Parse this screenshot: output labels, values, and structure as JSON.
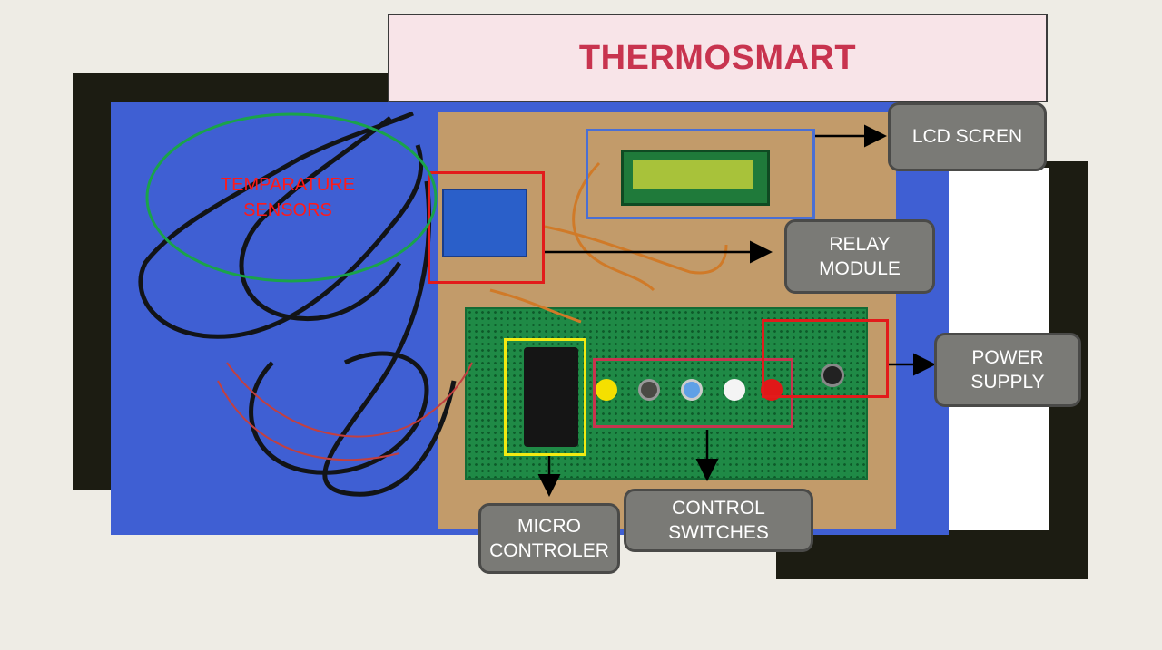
{
  "title": "THERMOSMART",
  "labels": {
    "lcd": "LCD SCREN",
    "relay": "RELAY\nMODULE",
    "power": "POWER\nSUPPLY",
    "micro": "MICRO\nCONTROLER",
    "switches": "CONTROL\nSWITCHES",
    "sensors": "TEMPARATURE\nSENSORS"
  },
  "colors": {
    "title_text": "#c8344f",
    "title_bg": "#f8e4e8",
    "callout_bg": "#7a7a76",
    "relay_box": "#e21b1b",
    "lcd_box": "#4a6fd4",
    "micro_box": "#f2ea12",
    "switch_box": "#c8344f",
    "power_box": "#e21b1b",
    "sensor_ellipse": "#1aa34a",
    "sensor_text": "#ff1a1a"
  },
  "buttons": [
    "yellow",
    "grey",
    "blue",
    "white",
    "red"
  ]
}
